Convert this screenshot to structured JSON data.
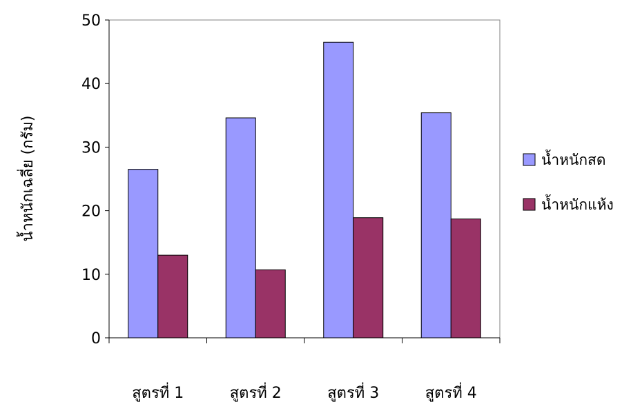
{
  "chart_data": {
    "type": "bar",
    "title": "",
    "xlabel": "",
    "ylabel": "น้ำหนักเฉลี่ย (กรัม)",
    "categories": [
      "สูตรที่ 1",
      "สูตรที่ 2",
      "สูตรที่ 3",
      "สูตรที่ 4"
    ],
    "series": [
      {
        "name": "น้ำหนักสด",
        "values": [
          26.5,
          34.6,
          46.5,
          35.4
        ],
        "color": "#9999FF"
      },
      {
        "name": "น้ำหนักแห้ง",
        "values": [
          13.0,
          10.7,
          18.9,
          18.7
        ],
        "color": "#993366"
      }
    ],
    "ylim": [
      0,
      50
    ],
    "yticks": [
      0,
      10,
      20,
      30,
      40,
      50
    ],
    "grid": false,
    "legend_position": "right"
  }
}
